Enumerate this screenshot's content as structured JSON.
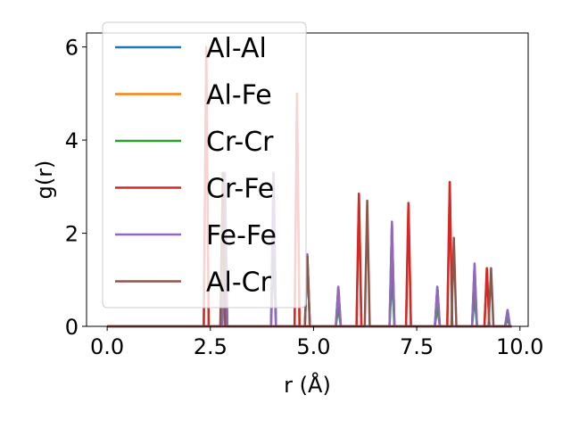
{
  "chart_data": {
    "type": "line",
    "title": "",
    "xlabel": "r (Å)",
    "ylabel": "g(r)",
    "xlim": [
      -0.5,
      10.2
    ],
    "ylim": [
      0,
      6.3
    ],
    "xticks": [
      0.0,
      2.5,
      5.0,
      7.5,
      10.0
    ],
    "xtick_labels": [
      "0.0",
      "2.5",
      "5.0",
      "7.5",
      "10.0"
    ],
    "yticks": [
      0,
      2,
      4,
      6
    ],
    "ytick_labels": [
      "0",
      "2",
      "4",
      "6"
    ],
    "grid": false,
    "legend_position": "upper-left",
    "peak_half_width": 0.06,
    "series": [
      {
        "name": "Al-Al",
        "color": "#1f77b4",
        "peaks": [
          [
            2.85,
            3.3
          ],
          [
            4.03,
            3.3
          ],
          [
            4.85,
            1.5
          ],
          [
            5.6,
            0.85
          ],
          [
            6.9,
            2.2
          ],
          [
            8.0,
            0.85
          ],
          [
            8.9,
            1.3
          ],
          [
            9.7,
            0.35
          ]
        ]
      },
      {
        "name": "Al-Fe",
        "color": "#ff7f0e",
        "peaks": [
          [
            2.4,
            6.0
          ],
          [
            4.6,
            5.0
          ],
          [
            6.1,
            2.85
          ],
          [
            7.3,
            2.65
          ],
          [
            8.3,
            3.1
          ],
          [
            9.2,
            1.25
          ]
        ]
      },
      {
        "name": "Cr-Cr",
        "color": "#2ca02c",
        "peaks": [
          [
            2.85,
            1.6
          ],
          [
            4.03,
            1.6
          ],
          [
            5.6,
            0.4
          ],
          [
            6.9,
            1.1
          ],
          [
            8.0,
            0.4
          ],
          [
            8.9,
            0.65
          ],
          [
            9.7,
            0.15
          ]
        ]
      },
      {
        "name": "Cr-Fe",
        "color": "#d62728",
        "peaks": [
          [
            2.4,
            6.0
          ],
          [
            4.6,
            5.0
          ],
          [
            6.1,
            2.85
          ],
          [
            7.3,
            2.65
          ],
          [
            8.3,
            3.1
          ],
          [
            9.2,
            1.25
          ]
        ]
      },
      {
        "name": "Fe-Fe",
        "color": "#9467bd",
        "peaks": [
          [
            2.85,
            3.3
          ],
          [
            4.03,
            3.3
          ],
          [
            4.85,
            1.55
          ],
          [
            5.6,
            0.85
          ],
          [
            6.9,
            2.25
          ],
          [
            8.0,
            0.85
          ],
          [
            8.9,
            1.35
          ],
          [
            9.7,
            0.35
          ]
        ]
      },
      {
        "name": "Al-Cr",
        "color": "#8c564b",
        "peaks": [
          [
            2.8,
            3.3
          ],
          [
            4.85,
            1.5
          ],
          [
            6.3,
            2.7
          ],
          [
            8.4,
            1.9
          ],
          [
            9.3,
            1.25
          ]
        ]
      }
    ]
  }
}
